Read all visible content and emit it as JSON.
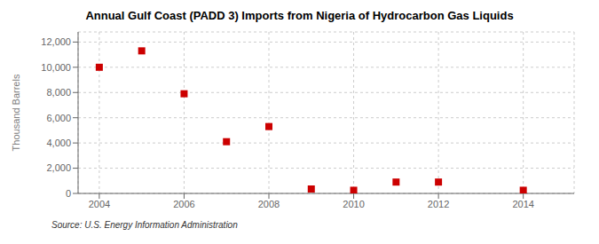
{
  "chart_data": {
    "type": "scatter",
    "title": "Annual Gulf Coast (PADD 3) Imports from Nigeria of Hydrocarbon Gas Liquids",
    "y_label": "Thousand Barrels",
    "annotations": [
      "Source: U.S. Energy Information Administration"
    ],
    "x": [
      2004,
      2005,
      2006,
      2007,
      2008,
      2009,
      2010,
      2011,
      2012,
      2014
    ],
    "values": [
      10000,
      11300,
      7900,
      4100,
      5300,
      350,
      250,
      900,
      900,
      250
    ],
    "color": "#cc0000",
    "marker": "square",
    "xlim": [
      2003.5,
      2015.2
    ],
    "ylim": [
      0,
      12800
    ],
    "xticks": [
      2004,
      2006,
      2008,
      2010,
      2012,
      2014
    ],
    "yticks": [
      0,
      {
        "value": 2000,
        "label": "2,000"
      },
      {
        "value": 4000,
        "label": "4,000"
      },
      {
        "value": 6000,
        "label": "6,000"
      },
      {
        "value": 8000,
        "label": "8,000"
      },
      {
        "value": 10000,
        "label": "10,000"
      },
      {
        "value": 12000,
        "label": "12,000"
      }
    ],
    "grid": true
  }
}
